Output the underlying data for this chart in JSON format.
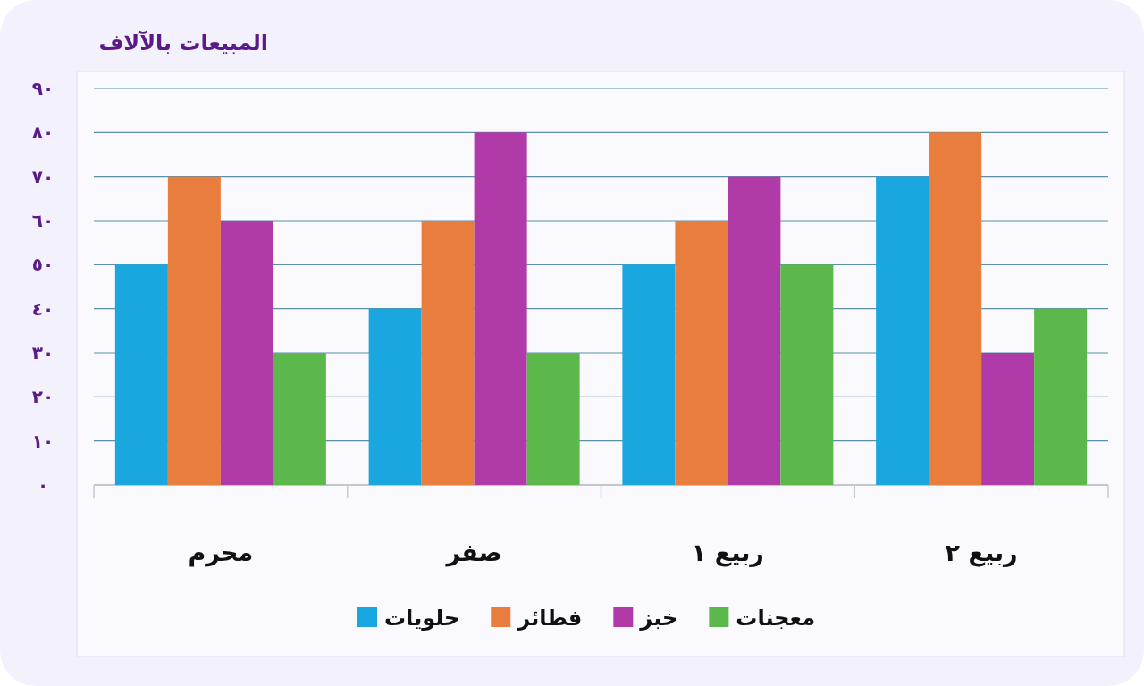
{
  "chart_data": {
    "type": "bar",
    "title": "المبيعات بالآلاف",
    "categories": [
      "محرم",
      "صفر",
      "ربيع ١",
      "ربيع ٢"
    ],
    "series": [
      {
        "name": "حلويات",
        "color": "#1aa7e0",
        "values": [
          50,
          40,
          50,
          70
        ]
      },
      {
        "name": "فطائر",
        "color": "#e87d3e",
        "values": [
          70,
          60,
          60,
          80
        ]
      },
      {
        "name": "خبز",
        "color": "#b03aa8",
        "values": [
          60,
          80,
          70,
          30
        ]
      },
      {
        "name": "معجنات",
        "color": "#5cb84a",
        "values": [
          30,
          30,
          50,
          40
        ]
      }
    ],
    "ylim": [
      0,
      90
    ],
    "yticks": [
      {
        "value": 0,
        "label": "٠"
      },
      {
        "value": 10,
        "label": "١٠"
      },
      {
        "value": 20,
        "label": "٢٠"
      },
      {
        "value": 30,
        "label": "٣٠"
      },
      {
        "value": 40,
        "label": "٤٠"
      },
      {
        "value": 50,
        "label": "٥٠"
      },
      {
        "value": 60,
        "label": "٦٠"
      },
      {
        "value": 70,
        "label": "٧٠"
      },
      {
        "value": 80,
        "label": "٨٠"
      },
      {
        "value": 90,
        "label": "٩٠"
      }
    ],
    "grid": "y",
    "legend": "bottom"
  }
}
